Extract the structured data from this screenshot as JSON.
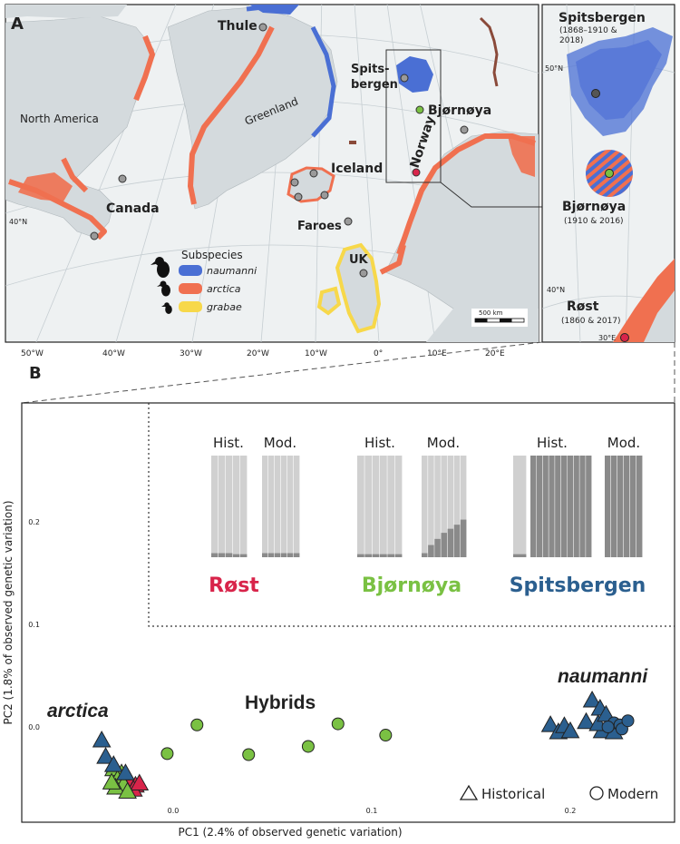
{
  "panel_a": {
    "label": "A",
    "places": [
      {
        "id": "thule",
        "text": "Thule"
      },
      {
        "id": "spits1",
        "text": "Spits-"
      },
      {
        "id": "spits2",
        "text": "bergen"
      },
      {
        "id": "bjornoya",
        "text": "Bjørnøya"
      },
      {
        "id": "iceland",
        "text": "Iceland"
      },
      {
        "id": "norway",
        "text": "Norway"
      },
      {
        "id": "faroes",
        "text": "Faroes"
      },
      {
        "id": "uk",
        "text": "UK"
      },
      {
        "id": "canada",
        "text": "Canada"
      }
    ],
    "regions": [
      {
        "id": "north_america",
        "text": "North America"
      },
      {
        "id": "greenland",
        "text": "Greenland"
      }
    ],
    "lat_label": "40°N",
    "lon_labels": [
      "50°W",
      "40°W",
      "30°W",
      "20°W",
      "10°W",
      "0°",
      "10°E",
      "20°E"
    ],
    "scale_label": "500 km",
    "legend": {
      "title": "Subspecies",
      "items": [
        {
          "name": "naumanni",
          "color": "#4a6fd4"
        },
        {
          "name": "arctica",
          "color": "#f07050"
        },
        {
          "name": "grabae",
          "color": "#f7d84a"
        }
      ]
    }
  },
  "inset": {
    "spits_title": "Spitsbergen",
    "spits_years": "(1868–1910 &",
    "spits_years2": "2018)",
    "lat_top": "50°N",
    "bjorn_title": "Bjørnøya",
    "bjorn_years": "(1910 & 2016)",
    "lat_mid": "40°N",
    "rost_title": "Røst",
    "rost_years": "(1860 & 2017)",
    "lon_bottom": "30°E"
  },
  "colors": {
    "land": "#d4dadd",
    "sea": "#eef1f2",
    "naumanni": "#4a6fd4",
    "arctica": "#f07050",
    "grabae": "#f7d84a",
    "site_grey": "#9a9a9a",
    "rost_red": "#d8244a",
    "bjorn_green": "#7ac143",
    "spits_blue": "#2b5f8f",
    "bar_light": "#d0d0d0",
    "bar_dark": "#8a8a8a"
  },
  "panel_b": {
    "label": "B",
    "groups": [
      {
        "name": "Røst",
        "color": "#d8244a",
        "hist_label": "Hist.",
        "mod_label": "Mod."
      },
      {
        "name": "Bjørnøya",
        "color": "#7ac143",
        "hist_label": "Hist.",
        "mod_label": "Mod."
      },
      {
        "name": "Spitsbergen",
        "color": "#2b5f8f",
        "hist_label": "Hist.",
        "mod_label": "Mod."
      }
    ],
    "cluster_labels": {
      "arctica": "arctica",
      "hybrids": "Hybrids",
      "naumanni": "naumanni"
    },
    "legend": {
      "historical": "Historical",
      "modern": "Modern"
    }
  },
  "chart_data": {
    "type": "scatter",
    "xlabel": "PC1 (2.4% of observed genetic variation)",
    "ylabel": "PC2 (1.8% of observed genetic variation)",
    "xlim": [
      -0.04,
      0.225
    ],
    "ylim": [
      -0.085,
      0.29
    ],
    "xticks": [
      "0.0",
      "0.1",
      "0.2"
    ],
    "yticks": [
      "0.0",
      "0.1",
      "0.2"
    ],
    "xtick_values": [
      0.0,
      0.1,
      0.2
    ],
    "ytick_values": [
      0.0,
      0.1,
      0.2
    ],
    "series": [
      {
        "name": "Røst",
        "marker": "triangle",
        "color": "#d8244a",
        "points": [
          [
            -0.027,
            -0.048
          ],
          [
            -0.022,
            -0.052
          ],
          [
            -0.019,
            -0.056
          ],
          [
            -0.024,
            -0.058
          ],
          [
            -0.02,
            -0.06
          ],
          [
            -0.017,
            -0.054
          ]
        ]
      },
      {
        "name": "Bjørnøya",
        "marker": "triangle",
        "color": "#7ac143",
        "points": [
          [
            -0.03,
            -0.04
          ],
          [
            -0.026,
            -0.044
          ],
          [
            -0.028,
            -0.05
          ],
          [
            -0.025,
            -0.055
          ],
          [
            -0.029,
            -0.058
          ],
          [
            -0.023,
            -0.062
          ],
          [
            -0.031,
            -0.053
          ]
        ]
      },
      {
        "name": "Spitsbergen",
        "marker": "triangle",
        "color": "#2b5f8f",
        "points": [
          [
            -0.036,
            -0.012
          ],
          [
            -0.034,
            -0.028
          ],
          [
            -0.03,
            -0.036
          ],
          [
            -0.024,
            -0.044
          ]
        ]
      },
      {
        "name": "Bjørnøya",
        "marker": "circle",
        "color": "#7ac143",
        "points": [
          [
            -0.003,
            -0.026
          ],
          [
            0.012,
            0.002
          ],
          [
            0.038,
            -0.027
          ],
          [
            0.068,
            -0.019
          ],
          [
            0.083,
            0.003
          ],
          [
            0.107,
            -0.008
          ]
        ]
      },
      {
        "name": "Spitsbergen",
        "marker": "triangle",
        "color": "#2b5f8f",
        "points": [
          [
            0.19,
            0.003
          ],
          [
            0.194,
            -0.004
          ],
          [
            0.197,
            0.002
          ],
          [
            0.2,
            -0.003
          ],
          [
            0.208,
            0.006
          ],
          [
            0.211,
            0.027
          ],
          [
            0.215,
            0.019
          ],
          [
            0.216,
            -0.003
          ],
          [
            0.214,
            0.004
          ],
          [
            0.222,
            -0.004
          ],
          [
            0.218,
            0.013
          ]
        ]
      },
      {
        "name": "Spitsbergen",
        "marker": "circle",
        "color": "#2b5f8f",
        "points": [
          [
            0.222,
            0.004
          ],
          [
            0.225,
            0.002
          ],
          [
            0.226,
            -0.002
          ],
          [
            0.219,
            0.0
          ],
          [
            0.229,
            0.006
          ]
        ]
      }
    ],
    "admixture": [
      {
        "group": "Røst",
        "hist_dark": [
          0.04,
          0.04,
          0.04,
          0.03,
          0.03
        ],
        "mod_dark": [
          0.04,
          0.04,
          0.04,
          0.04,
          0.04,
          0.04
        ]
      },
      {
        "group": "Bjørnøya",
        "hist_dark": [
          0.03,
          0.03,
          0.03,
          0.03,
          0.03,
          0.03
        ],
        "mod_dark": [
          0.04,
          0.12,
          0.18,
          0.24,
          0.28,
          0.32,
          0.37
        ]
      },
      {
        "group": "Spitsbergen",
        "hist_first_dark": 0.03,
        "hist_dark": [
          1,
          1,
          1,
          1,
          1,
          1,
          1,
          1,
          1,
          1
        ],
        "mod_dark": [
          1,
          1,
          1,
          1,
          1,
          1
        ]
      }
    ]
  }
}
